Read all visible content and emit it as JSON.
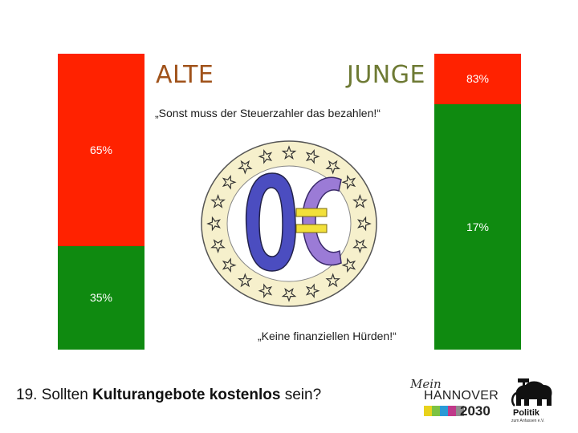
{
  "chart_data": {
    "type": "bar",
    "stacked": true,
    "categories": [
      "ALTE",
      "JUNGE"
    ],
    "series": [
      {
        "values": [
          65,
          17
        ],
        "color": "#ff2200"
      },
      {
        "values": [
          35,
          83
        ],
        "color": "#0f8a10"
      }
    ],
    "value_labels": {
      "ALTE": {
        "top": "65%",
        "bottom": "35%"
      },
      "JUNGE": {
        "top": "83%",
        "bottom": "17%"
      }
    },
    "ylim": [
      0,
      100
    ]
  },
  "labels": {
    "alte": "ALTE",
    "junge": "JUNGE"
  },
  "quotes": {
    "top": "„Sonst muss der Steuerzahler das bezahlen!“",
    "bottom": "„Keine finanziellen Hürden!“"
  },
  "question": {
    "prefix": "19. Sollten ",
    "bold": "Kulturangebote kostenlos",
    "suffix": " sein?"
  },
  "logo_mein": {
    "word": "Mein",
    "city": "HANNOVER",
    "year": "2030",
    "strip_colors": [
      "#e8d21c",
      "#7cc242",
      "#2a9ad6",
      "#c0398a",
      "#8e8e8e"
    ]
  },
  "logo_politik": {
    "word": "Politik",
    "sub": "zum Anfassen e.V."
  }
}
